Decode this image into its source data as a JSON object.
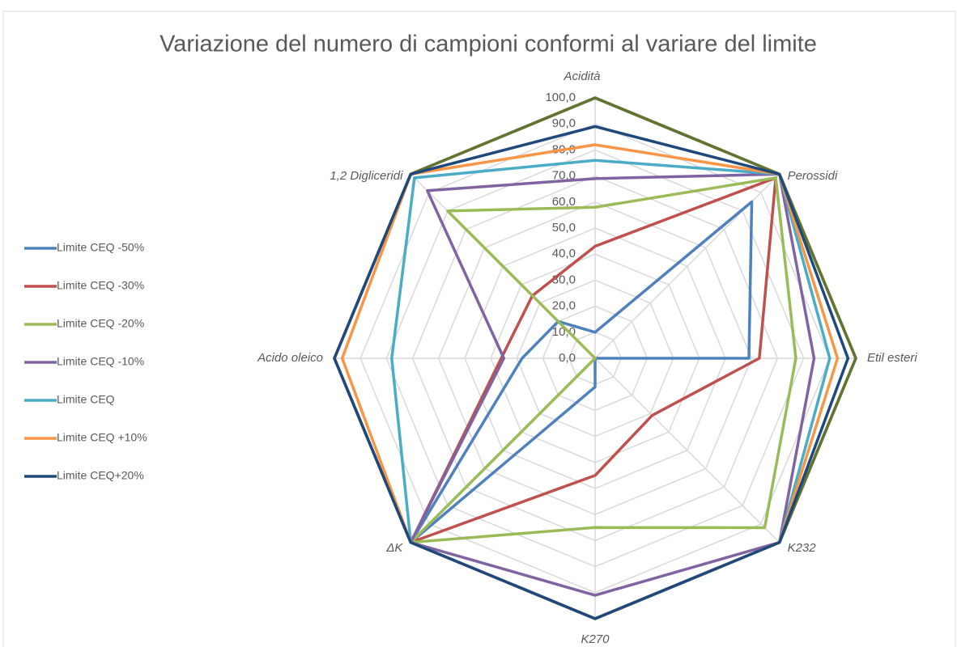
{
  "chart_data": {
    "type": "radar",
    "title": "Variazione del numero di campioni conformi al variare del limite",
    "categories": [
      "Acidità",
      "Perossidi",
      "Etil esteri",
      "K232",
      "K270",
      "ΔK",
      "Acido oleico",
      "1,2 Digliceridi"
    ],
    "rlim": [
      0,
      100
    ],
    "rticks": [
      {
        "value": 0,
        "label": "0,0"
      },
      {
        "value": 10,
        "label": "10,0"
      },
      {
        "value": 20,
        "label": "20,0"
      },
      {
        "value": 30,
        "label": "30,0"
      },
      {
        "value": 40,
        "label": "40,0"
      },
      {
        "value": 50,
        "label": "50,0"
      },
      {
        "value": 60,
        "label": "60,0"
      },
      {
        "value": 70,
        "label": "70,0"
      },
      {
        "value": 80,
        "label": "80,0"
      },
      {
        "value": 90,
        "label": "90,0"
      },
      {
        "value": 100,
        "label": "100,0"
      }
    ],
    "grid": true,
    "legend": "left",
    "series": [
      {
        "color": "#772c2a",
        "values": [
          100,
          100,
          100,
          100,
          100,
          100,
          100,
          100
        ]
      },
      {
        "color": "#5f7530",
        "values": [
          100,
          100,
          100,
          100,
          100,
          100,
          100,
          100
        ]
      },
      {
        "name": "Limite CEQ -50%",
        "color": "#4f81bd",
        "values": [
          10,
          85,
          59,
          0,
          11,
          100,
          28,
          20
        ]
      },
      {
        "name": "Limite CEQ -30%",
        "color": "#c0504d",
        "values": [
          43,
          98,
          63,
          31,
          45,
          100,
          36,
          34
        ]
      },
      {
        "name": "Limite CEQ -20%",
        "color": "#9bbb59",
        "values": [
          58,
          98,
          77,
          92,
          65,
          100,
          0,
          80
        ]
      },
      {
        "name": "Limite CEQ -10%",
        "color": "#8064a2",
        "values": [
          69,
          100,
          84,
          100,
          91,
          100,
          35,
          91
        ]
      },
      {
        "name": "Limite CEQ",
        "color": "#4bacc6",
        "values": [
          76,
          100,
          90,
          100,
          100,
          100,
          78,
          98
        ]
      },
      {
        "name": "Limite CEQ +10%",
        "color": "#f79646",
        "values": [
          82,
          100,
          93,
          100,
          100,
          100,
          97,
          100
        ]
      },
      {
        "name": "Limite CEQ+20%",
        "color": "#1f497d",
        "values": [
          89,
          100,
          97,
          100,
          100,
          100,
          100,
          100
        ]
      }
    ]
  }
}
